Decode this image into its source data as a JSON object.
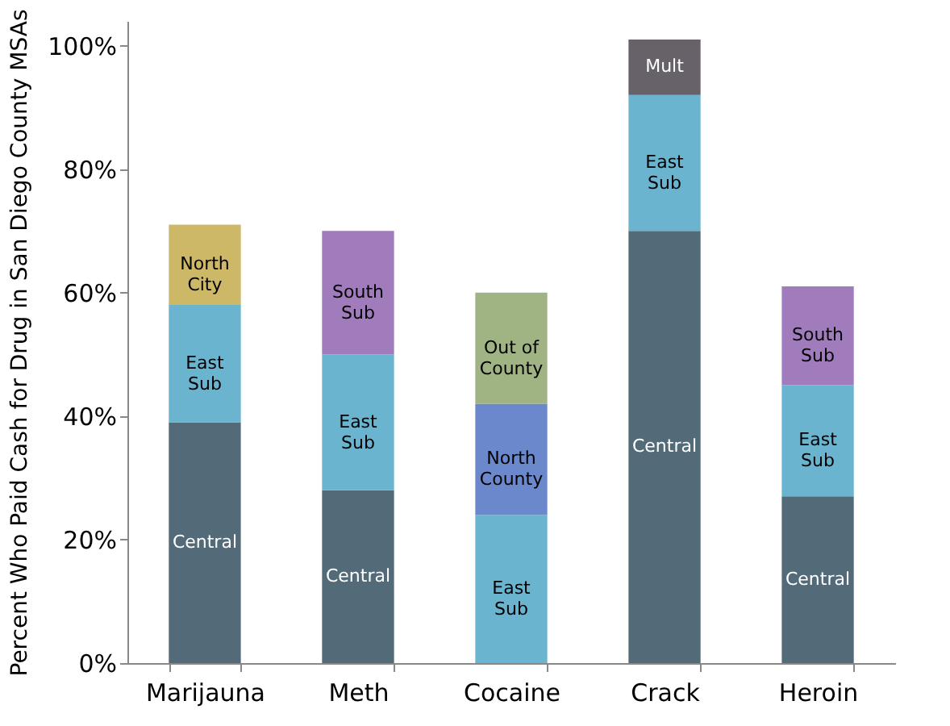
{
  "chart_data": {
    "type": "bar",
    "stacked": true,
    "ylabel": "Percent Who Paid Cash for Drug in San Diego County MSAs",
    "categories": [
      "Marijauna",
      "Meth",
      "Cocaine",
      "Crack",
      "Heroin"
    ],
    "series": [
      {
        "name": "Central",
        "color": "#536b78",
        "values": [
          39,
          28,
          null,
          70,
          27
        ]
      },
      {
        "name": "East Sub",
        "color": "#6ab4cf",
        "values": [
          19,
          22,
          24,
          22,
          18
        ]
      },
      {
        "name": "North City",
        "color": "#cdb868",
        "values": [
          13,
          null,
          null,
          null,
          null
        ]
      },
      {
        "name": "South Sub",
        "color": "#a07cbc",
        "values": [
          null,
          20,
          null,
          null,
          16
        ]
      },
      {
        "name": "North County",
        "color": "#6b88cc",
        "values": [
          null,
          null,
          18,
          null,
          null
        ]
      },
      {
        "name": "Out of County",
        "color": "#9fb383",
        "values": [
          null,
          null,
          18,
          null,
          null
        ]
      },
      {
        "name": "Mult",
        "color": "#67616a",
        "values": [
          null,
          null,
          null,
          9,
          null
        ]
      }
    ],
    "ylim": [
      0,
      104
    ],
    "yticks": [
      {
        "value": 0,
        "label": "0%"
      },
      {
        "value": 20,
        "label": "20%"
      },
      {
        "value": 40,
        "label": "40%"
      },
      {
        "value": 60,
        "label": "60%"
      },
      {
        "value": 80,
        "label": "80%"
      },
      {
        "value": 100,
        "label": "100%"
      }
    ],
    "grid": false,
    "legend": false
  }
}
